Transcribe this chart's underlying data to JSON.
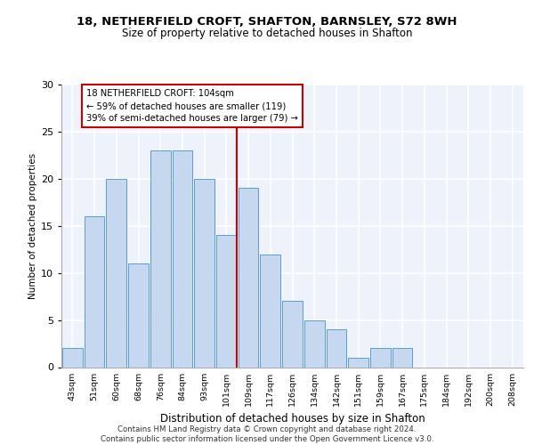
{
  "title1": "18, NETHERFIELD CROFT, SHAFTON, BARNSLEY, S72 8WH",
  "title2": "Size of property relative to detached houses in Shafton",
  "xlabel": "Distribution of detached houses by size in Shafton",
  "ylabel": "Number of detached properties",
  "categories": [
    "43sqm",
    "51sqm",
    "60sqm",
    "68sqm",
    "76sqm",
    "84sqm",
    "93sqm",
    "101sqm",
    "109sqm",
    "117sqm",
    "126sqm",
    "134sqm",
    "142sqm",
    "151sqm",
    "159sqm",
    "167sqm",
    "175sqm",
    "184sqm",
    "192sqm",
    "200sqm",
    "208sqm"
  ],
  "values": [
    2,
    16,
    20,
    11,
    23,
    23,
    20,
    14,
    19,
    12,
    7,
    5,
    4,
    1,
    2,
    2,
    0,
    0,
    0,
    0,
    0
  ],
  "bar_color": "#c5d8f0",
  "bar_edge_color": "#5b9bd5",
  "vline_x_index": 7,
  "vline_color": "#cc0000",
  "annotation_text": "18 NETHERFIELD CROFT: 104sqm\n← 59% of detached houses are smaller (119)\n39% of semi-detached houses are larger (79) →",
  "annotation_box_color": "#ffffff",
  "annotation_box_edge": "#cc0000",
  "ylim": [
    0,
    30
  ],
  "yticks": [
    0,
    5,
    10,
    15,
    20,
    25,
    30
  ],
  "footer": "Contains HM Land Registry data © Crown copyright and database right 2024.\nContains public sector information licensed under the Open Government Licence v3.0.",
  "bg_color": "#eef2fb",
  "grid_color": "#ffffff"
}
